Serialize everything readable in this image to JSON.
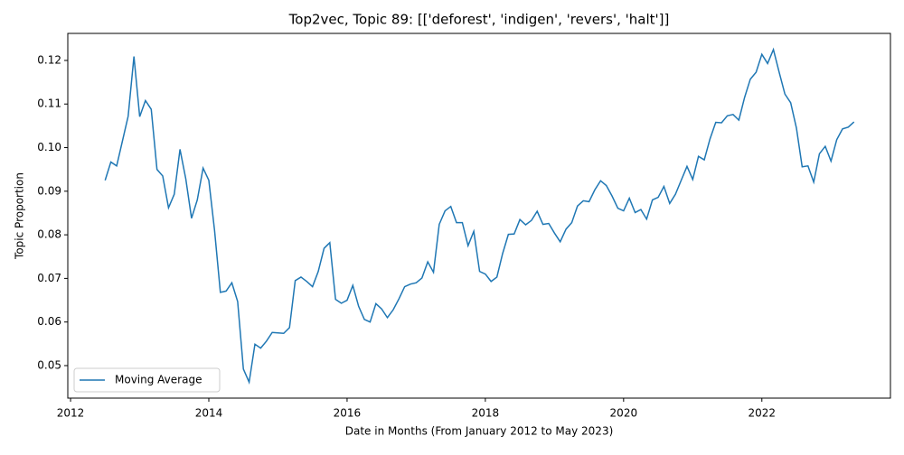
{
  "chart_data": {
    "type": "line",
    "title": "Top2vec, Topic 89: [['deforest', 'indigen', 'revers', 'halt']]",
    "x_label": "Date in Months (From January 2012 to May 2023)",
    "y_label": "Topic Proportion",
    "x": [
      2012.5,
      2012.583,
      2012.667,
      2012.75,
      2012.833,
      2012.917,
      2013,
      2013.083,
      2013.167,
      2013.25,
      2013.333,
      2013.417,
      2013.5,
      2013.583,
      2013.667,
      2013.75,
      2013.833,
      2013.917,
      2014,
      2014.083,
      2014.167,
      2014.25,
      2014.333,
      2014.417,
      2014.5,
      2014.583,
      2014.667,
      2014.75,
      2014.833,
      2014.917,
      2015,
      2015.083,
      2015.167,
      2015.25,
      2015.333,
      2015.417,
      2015.5,
      2015.583,
      2015.667,
      2015.75,
      2015.833,
      2015.917,
      2016,
      2016.083,
      2016.167,
      2016.25,
      2016.333,
      2016.417,
      2016.5,
      2016.583,
      2016.667,
      2016.75,
      2016.833,
      2016.917,
      2017,
      2017.083,
      2017.167,
      2017.25,
      2017.333,
      2017.417,
      2017.5,
      2017.583,
      2017.667,
      2017.75,
      2017.833,
      2017.917,
      2018,
      2018.083,
      2018.167,
      2018.25,
      2018.333,
      2018.417,
      2018.5,
      2018.583,
      2018.667,
      2018.75,
      2018.833,
      2018.917,
      2019,
      2019.083,
      2019.167,
      2019.25,
      2019.333,
      2019.417,
      2019.5,
      2019.583,
      2019.667,
      2019.75,
      2019.833,
      2019.917,
      2020,
      2020.083,
      2020.167,
      2020.25,
      2020.333,
      2020.417,
      2020.5,
      2020.583,
      2020.667,
      2020.75,
      2020.833,
      2020.917,
      2021,
      2021.083,
      2021.167,
      2021.25,
      2021.333,
      2021.417,
      2021.5,
      2021.583,
      2021.667,
      2021.75,
      2021.833,
      2021.917,
      2022,
      2022.083,
      2022.167,
      2022.25,
      2022.333,
      2022.417,
      2022.5,
      2022.583,
      2022.667,
      2022.75,
      2022.833,
      2022.917,
      2023,
      2023.083,
      2023.167,
      2023.25,
      2023.333
    ],
    "series": [
      {
        "name": "Moving Average",
        "color": "#1f77b4",
        "values": [
          0.0925,
          0.0967,
          0.0958,
          0.1015,
          0.1072,
          0.1209,
          0.1071,
          0.1108,
          0.1088,
          0.095,
          0.0935,
          0.0862,
          0.0893,
          0.0996,
          0.0928,
          0.0838,
          0.088,
          0.0953,
          0.0925,
          0.081,
          0.0668,
          0.0671,
          0.069,
          0.0647,
          0.0492,
          0.0462,
          0.0549,
          0.054,
          0.0556,
          0.0576,
          0.0575,
          0.0574,
          0.0587,
          0.0695,
          0.0703,
          0.0693,
          0.0681,
          0.0716,
          0.0769,
          0.0782,
          0.0652,
          0.0643,
          0.065,
          0.0684,
          0.0636,
          0.0606,
          0.06,
          0.0642,
          0.063,
          0.061,
          0.0628,
          0.0653,
          0.0681,
          0.0687,
          0.069,
          0.0701,
          0.0738,
          0.0714,
          0.0824,
          0.0855,
          0.0865,
          0.0828,
          0.0828,
          0.0775,
          0.0808,
          0.0716,
          0.071,
          0.0693,
          0.0703,
          0.0757,
          0.0801,
          0.0802,
          0.0835,
          0.0823,
          0.0833,
          0.0854,
          0.0824,
          0.0826,
          0.0804,
          0.0784,
          0.0813,
          0.0828,
          0.0866,
          0.0878,
          0.0876,
          0.0903,
          0.0924,
          0.0913,
          0.0889,
          0.0861,
          0.0855,
          0.0884,
          0.0851,
          0.0858,
          0.0836,
          0.088,
          0.0886,
          0.0911,
          0.0872,
          0.0893,
          0.0925,
          0.0957,
          0.0927,
          0.098,
          0.0972,
          0.102,
          0.1058,
          0.1057,
          0.1073,
          0.1076,
          0.1063,
          0.1115,
          0.1157,
          0.1173,
          0.1214,
          0.1193,
          0.1225,
          0.1173,
          0.1123,
          0.1103,
          0.1045,
          0.0956,
          0.0958,
          0.0921,
          0.0986,
          0.1003,
          0.0969,
          0.1018,
          0.1043,
          0.1047,
          0.1059
        ]
      }
    ],
    "xlim": [
      2011.96,
      2023.86
    ],
    "xticks": [
      2012,
      2014,
      2016,
      2018,
      2020,
      2022
    ],
    "ylim": [
      0.04254,
      0.1262
    ],
    "yticks": [
      0.05,
      0.06,
      0.07,
      0.08,
      0.09,
      {
        "value": 0.1,
        "label": "0.10"
      },
      0.11,
      0.12
    ],
    "legend": "lower left"
  }
}
